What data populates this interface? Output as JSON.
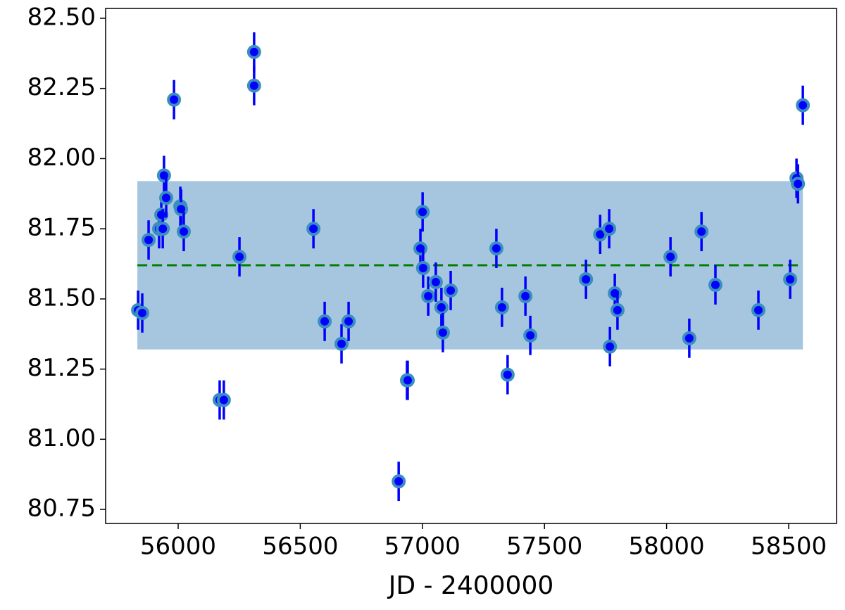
{
  "chart_data": {
    "type": "errorbar",
    "xlabel": "JD - 2400000",
    "x": [
      55836,
      55853,
      55879,
      55922,
      55931,
      55937,
      55942,
      55951,
      55983,
      56009,
      56012,
      56023,
      56170,
      56187,
      56251,
      56311,
      56311,
      56554,
      56600,
      56669,
      56698,
      56903,
      56937,
      56940,
      56992,
      57001,
      57003,
      57024,
      57055,
      57078,
      57084,
      57116,
      57303,
      57326,
      57349,
      57422,
      57442,
      57670,
      57728,
      57765,
      57768,
      57788,
      57799,
      58016,
      58093,
      58143,
      58200,
      58376,
      58506,
      58532,
      58538,
      58558
    ],
    "values": [
      81.46,
      81.45,
      81.71,
      81.75,
      81.8,
      81.75,
      81.94,
      81.86,
      82.21,
      81.83,
      81.82,
      81.74,
      81.14,
      81.14,
      81.65,
      82.38,
      82.26,
      81.75,
      81.42,
      81.34,
      81.42,
      80.85,
      81.21,
      81.21,
      81.68,
      81.81,
      81.61,
      81.51,
      81.56,
      81.47,
      81.38,
      81.53,
      81.68,
      81.47,
      81.23,
      81.51,
      81.37,
      81.57,
      81.73,
      81.75,
      81.33,
      81.52,
      81.46,
      81.65,
      81.36,
      81.74,
      81.55,
      81.46,
      81.57,
      81.93,
      81.91,
      82.19
    ],
    "errors": [
      0.07,
      0.07,
      0.07,
      0.07,
      0.07,
      0.07,
      0.07,
      0.07,
      0.07,
      0.07,
      0.07,
      0.07,
      0.07,
      0.07,
      0.07,
      0.07,
      0.07,
      0.07,
      0.07,
      0.07,
      0.07,
      0.07,
      0.07,
      0.07,
      0.07,
      0.07,
      0.07,
      0.07,
      0.07,
      0.07,
      0.07,
      0.07,
      0.07,
      0.07,
      0.07,
      0.07,
      0.07,
      0.07,
      0.07,
      0.07,
      0.07,
      0.07,
      0.07,
      0.07,
      0.07,
      0.07,
      0.07,
      0.07,
      0.07,
      0.07,
      0.07,
      0.07
    ],
    "marker_color": "#0000ff",
    "marker_edge_color": "#3a8fc0",
    "error_color": "#0000ff",
    "band": {
      "xlim": [
        55833,
        58558
      ],
      "ylim": [
        81.32,
        81.92
      ],
      "color": "#a6c6e0"
    },
    "mean_line": {
      "value": 81.62,
      "color": "#008000"
    },
    "xlim": [
      55703,
      58696
    ],
    "ylim": [
      80.7,
      82.535
    ],
    "xticks": [
      56000,
      56500,
      57000,
      57500,
      58000,
      58500
    ],
    "yticks": [
      {
        "value": 80.75,
        "label": "80.75"
      },
      {
        "value": 81.0,
        "label": "81.00"
      },
      {
        "value": 81.25,
        "label": "81.25"
      },
      {
        "value": 81.5,
        "label": "81.50"
      },
      {
        "value": 81.75,
        "label": "81.75"
      },
      {
        "value": 82.0,
        "label": "82.00"
      },
      {
        "value": 82.25,
        "label": "82.25"
      },
      {
        "value": 82.5,
        "label": "82.50"
      }
    ]
  }
}
